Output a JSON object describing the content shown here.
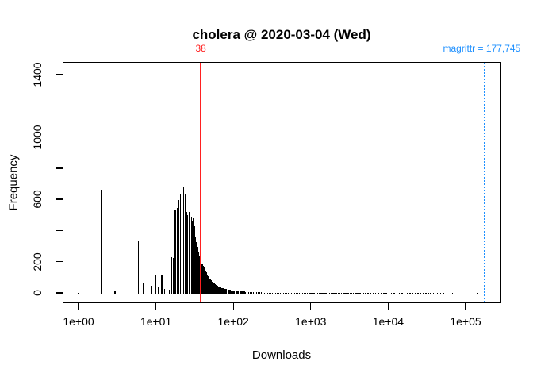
{
  "title": "cholera @ 2020-03-04 (Wed)",
  "x_axis": {
    "label": "Downloads",
    "scale": "log10",
    "ticks": [
      {
        "value": 1,
        "label": "1e+00"
      },
      {
        "value": 10,
        "label": "1e+01"
      },
      {
        "value": 100,
        "label": "1e+02"
      },
      {
        "value": 1000,
        "label": "1e+03"
      },
      {
        "value": 10000,
        "label": "1e+04"
      },
      {
        "value": 100000,
        "label": "1e+05"
      }
    ]
  },
  "y_axis": {
    "label": "Frequency",
    "ticks": [
      {
        "value": 0,
        "label": "0"
      },
      {
        "value": 200,
        "label": "200"
      },
      {
        "value": 400,
        "label": ""
      },
      {
        "value": 600,
        "label": "600"
      },
      {
        "value": 800,
        "label": ""
      },
      {
        "value": 1000,
        "label": "1000"
      },
      {
        "value": 1200,
        "label": ""
      },
      {
        "value": 1400,
        "label": "1400"
      }
    ]
  },
  "annotations": {
    "cholera": {
      "label": "38",
      "value": 38,
      "color": "#FF2020",
      "line_style": "solid"
    },
    "magrittr": {
      "label": "magrittr = 177,745",
      "value": 177745,
      "color": "#1E90FF",
      "line_style": "dotted"
    }
  },
  "chart_data": {
    "type": "bar",
    "title": "cholera @ 2020-03-04 (Wed)",
    "xlabel": "Downloads",
    "ylabel": "Frequency",
    "x_scale": "log10",
    "xlim": [
      1,
      297000
    ],
    "ylim": [
      0,
      1456
    ],
    "bar_color": "#000000",
    "grid": false,
    "points": [
      [
        1,
        5
      ],
      [
        2,
        665
      ],
      [
        3,
        12
      ],
      [
        4,
        428
      ],
      [
        5,
        71
      ],
      [
        6,
        331
      ],
      [
        7,
        63
      ],
      [
        8,
        224
      ],
      [
        9,
        46
      ],
      [
        10,
        117
      ],
      [
        11,
        37
      ],
      [
        12,
        118
      ],
      [
        13,
        30
      ],
      [
        14,
        120
      ],
      [
        15,
        22
      ],
      [
        16,
        232
      ],
      [
        17,
        225
      ],
      [
        18,
        530
      ],
      [
        19,
        545
      ],
      [
        20,
        600
      ],
      [
        21,
        640
      ],
      [
        22,
        660
      ],
      [
        23,
        684
      ],
      [
        24,
        640
      ],
      [
        25,
        520
      ],
      [
        26,
        500
      ],
      [
        27,
        520
      ],
      [
        28,
        470
      ],
      [
        29,
        485
      ],
      [
        30,
        460
      ],
      [
        31,
        480
      ],
      [
        32,
        430
      ],
      [
        33,
        360
      ],
      [
        34,
        330
      ],
      [
        35,
        300
      ],
      [
        36,
        267
      ],
      [
        37,
        240
      ],
      [
        38,
        215
      ],
      [
        39,
        200
      ],
      [
        40,
        188
      ],
      [
        41,
        176
      ],
      [
        42,
        164
      ],
      [
        43,
        153
      ],
      [
        44,
        143
      ],
      [
        45,
        133
      ],
      [
        46,
        124
      ],
      [
        47,
        116
      ],
      [
        48,
        108
      ],
      [
        49,
        101
      ],
      [
        50,
        95
      ],
      [
        51,
        89
      ],
      [
        52,
        84
      ],
      [
        53,
        79
      ],
      [
        54,
        75
      ],
      [
        55,
        71
      ],
      [
        56,
        67
      ],
      [
        57,
        63
      ],
      [
        58,
        60
      ],
      [
        59,
        57
      ],
      [
        60,
        54
      ],
      [
        62,
        50
      ],
      [
        64,
        46
      ],
      [
        66,
        43
      ],
      [
        68,
        40
      ],
      [
        70,
        38
      ],
      [
        72,
        35
      ],
      [
        74,
        33
      ],
      [
        76,
        31
      ],
      [
        78,
        29
      ],
      [
        80,
        28
      ],
      [
        83,
        26
      ],
      [
        86,
        24
      ],
      [
        89,
        22
      ],
      [
        92,
        21
      ],
      [
        95,
        20
      ],
      [
        98,
        19
      ],
      [
        101,
        18
      ],
      [
        105,
        17
      ],
      [
        109,
        16
      ],
      [
        113,
        15
      ],
      [
        118,
        14
      ],
      [
        123,
        13
      ],
      [
        128,
        12
      ],
      [
        134,
        11
      ],
      [
        140,
        11
      ],
      [
        146,
        10
      ],
      [
        153,
        10
      ],
      [
        160,
        9
      ],
      [
        168,
        9
      ],
      [
        176,
        8
      ],
      [
        184,
        8
      ],
      [
        193,
        7
      ],
      [
        202,
        7
      ],
      [
        212,
        7
      ],
      [
        222,
        6
      ],
      [
        233,
        6
      ],
      [
        244,
        6
      ],
      [
        256,
        5
      ],
      [
        268,
        5
      ],
      [
        281,
        5
      ],
      [
        295,
        5
      ],
      [
        309,
        4
      ],
      [
        324,
        4
      ],
      [
        340,
        4
      ],
      [
        357,
        4
      ],
      [
        374,
        3
      ],
      [
        392,
        3
      ],
      [
        411,
        3
      ],
      [
        431,
        3
      ],
      [
        452,
        3
      ],
      [
        474,
        3
      ],
      [
        497,
        2
      ],
      [
        521,
        2
      ],
      [
        546,
        2
      ],
      [
        573,
        2
      ],
      [
        601,
        2
      ],
      [
        630,
        2
      ],
      [
        661,
        2
      ],
      [
        693,
        2
      ],
      [
        727,
        2
      ],
      [
        762,
        2
      ],
      [
        799,
        1
      ],
      [
        835,
        1
      ],
      [
        873,
        1
      ],
      [
        912,
        1
      ],
      [
        953,
        1
      ],
      [
        996,
        1
      ],
      [
        1041,
        1
      ],
      [
        1088,
        1
      ],
      [
        1137,
        1
      ],
      [
        1188,
        1
      ],
      [
        1242,
        1
      ],
      [
        1298,
        1
      ],
      [
        1357,
        1
      ],
      [
        1418,
        1
      ],
      [
        1482,
        1
      ],
      [
        1549,
        1
      ],
      [
        1619,
        1
      ],
      [
        1692,
        1
      ],
      [
        1768,
        1
      ],
      [
        1848,
        1
      ],
      [
        1931,
        1
      ],
      [
        2018,
        1
      ],
      [
        2109,
        1
      ],
      [
        2204,
        1
      ],
      [
        2303,
        1
      ],
      [
        2407,
        1
      ],
      [
        2516,
        1
      ],
      [
        2629,
        1
      ],
      [
        2748,
        1
      ],
      [
        2872,
        1
      ],
      [
        3001,
        1
      ],
      [
        3136,
        1
      ],
      [
        3277,
        1
      ],
      [
        3425,
        1
      ],
      [
        3579,
        1
      ],
      [
        3740,
        1
      ],
      [
        3909,
        1
      ],
      [
        4085,
        1
      ],
      [
        4269,
        1
      ],
      [
        4462,
        1
      ],
      [
        4663,
        1
      ],
      [
        4873,
        1
      ],
      [
        5093,
        1
      ],
      [
        5550,
        1
      ],
      [
        6000,
        1
      ],
      [
        6500,
        1
      ],
      [
        7000,
        1
      ],
      [
        7600,
        1
      ],
      [
        8200,
        1
      ],
      [
        8900,
        1
      ],
      [
        9600,
        1
      ],
      [
        10400,
        1
      ],
      [
        11200,
        1
      ],
      [
        12100,
        1
      ],
      [
        13100,
        1
      ],
      [
        14200,
        1
      ],
      [
        15300,
        1
      ],
      [
        16600,
        1
      ],
      [
        17900,
        1
      ],
      [
        19400,
        1
      ],
      [
        21000,
        1
      ],
      [
        22700,
        1
      ],
      [
        24500,
        1
      ],
      [
        26500,
        1
      ],
      [
        28700,
        1
      ],
      [
        31000,
        1
      ],
      [
        33500,
        1
      ],
      [
        36000,
        1
      ],
      [
        39000,
        1
      ],
      [
        44000,
        1
      ],
      [
        48000,
        1
      ],
      [
        53000,
        1
      ],
      [
        69000,
        1
      ],
      [
        146000,
        1
      ]
    ]
  }
}
